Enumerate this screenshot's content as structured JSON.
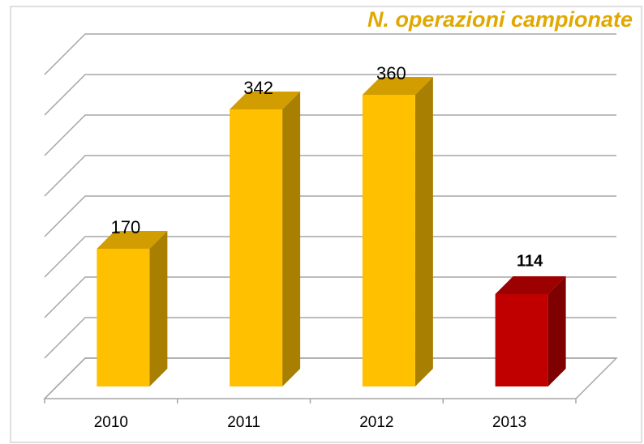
{
  "chart_data": {
    "type": "bar3d",
    "title": "N. operazioni campionate",
    "categories": [
      "2010",
      "2011",
      "2012",
      "2013"
    ],
    "values": [
      170,
      342,
      360,
      114
    ],
    "colors": [
      "#FFC000",
      "#FFC000",
      "#FFC000",
      "#C00000"
    ],
    "ylim": [
      0,
      400
    ],
    "yticks": [
      0,
      50,
      100,
      150,
      200,
      250,
      300,
      350,
      400
    ],
    "grid": true
  }
}
